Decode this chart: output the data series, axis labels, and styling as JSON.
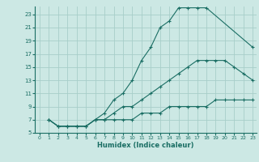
{
  "xlabel": "Humidex (Indice chaleur)",
  "bg_color": "#cce8e4",
  "line_color": "#1a6e64",
  "grid_color": "#a8cec9",
  "xlim": [
    -0.5,
    23.4
  ],
  "ylim": [
    5,
    24.2
  ],
  "xticks": [
    0,
    1,
    2,
    3,
    4,
    5,
    6,
    7,
    8,
    9,
    10,
    11,
    12,
    13,
    14,
    15,
    16,
    17,
    18,
    19,
    20,
    21,
    22,
    23
  ],
  "yticks": [
    5,
    7,
    9,
    11,
    13,
    15,
    17,
    19,
    21,
    23
  ],
  "line1_x": [
    1,
    2,
    3,
    4,
    5,
    6,
    7,
    8,
    9,
    10,
    11,
    12,
    13,
    14,
    15,
    16,
    17,
    18,
    23
  ],
  "line1_y": [
    7,
    6,
    6,
    6,
    6,
    7,
    8,
    10,
    11,
    13,
    16,
    18,
    21,
    22,
    24,
    24,
    24,
    24,
    18
  ],
  "line2_x": [
    1,
    2,
    3,
    4,
    5,
    6,
    7,
    8,
    9,
    10,
    11,
    12,
    13,
    14,
    15,
    16,
    17,
    18,
    19,
    20,
    21,
    22,
    23
  ],
  "line2_y": [
    7,
    6,
    6,
    6,
    6,
    7,
    7,
    8,
    9,
    9,
    10,
    11,
    12,
    13,
    14,
    15,
    16,
    16,
    16,
    16,
    15,
    14,
    13
  ],
  "line3_x": [
    1,
    2,
    3,
    4,
    5,
    6,
    7,
    8,
    9,
    10,
    11,
    12,
    13,
    14,
    15,
    16,
    17,
    18,
    19,
    20,
    21,
    22,
    23
  ],
  "line3_y": [
    7,
    6,
    6,
    6,
    6,
    7,
    7,
    7,
    7,
    7,
    8,
    8,
    8,
    9,
    9,
    9,
    9,
    9,
    10,
    10,
    10,
    10,
    10
  ]
}
